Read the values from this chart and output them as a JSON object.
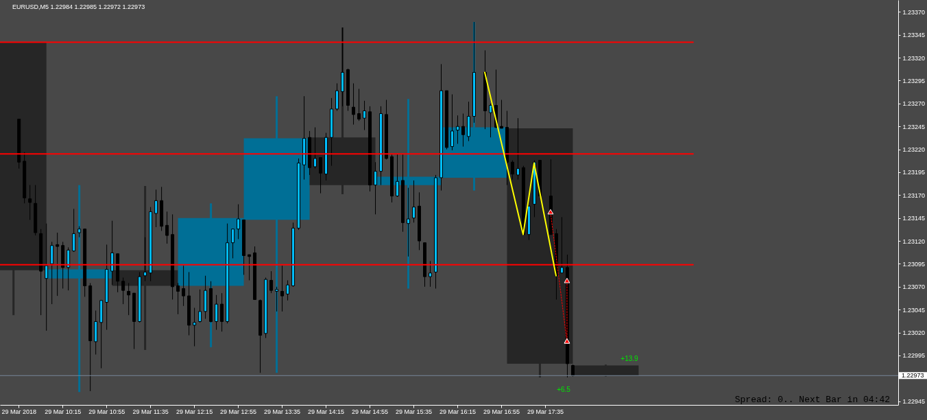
{
  "chart_data": {
    "type": "candlestick",
    "title": "EURUSD,M5 1.22984 1.22985 1.22972 1.22973",
    "xlim": [
      "2018-03-29T09:18",
      "2018-03-29T22:57"
    ],
    "xticks": [
      {
        "value": "2018-03-29T09:35",
        "label": "29 Mar 2018"
      },
      {
        "value": "2018-03-29T10:15",
        "label": "29 Mar 10:15"
      },
      {
        "value": "2018-03-29T10:55",
        "label": "29 Mar 10:55"
      },
      {
        "value": "2018-03-29T11:35",
        "label": "29 Mar 11:35"
      },
      {
        "value": "2018-03-29T12:15",
        "label": "29 Mar 12:15"
      },
      {
        "value": "2018-03-29T12:55",
        "label": "29 Mar 12:55"
      },
      {
        "value": "2018-03-29T13:35",
        "label": "29 Mar 13:35"
      },
      {
        "value": "2018-03-29T14:15",
        "label": "29 Mar 14:15"
      },
      {
        "value": "2018-03-29T14:55",
        "label": "29 Mar 14:55"
      },
      {
        "value": "2018-03-29T15:35",
        "label": "29 Mar 15:35"
      },
      {
        "value": "2018-03-29T16:15",
        "label": "29 Mar 16:15"
      },
      {
        "value": "2018-03-29T16:55",
        "label": "29 Mar 16:55"
      },
      {
        "value": "2018-03-29T17:35",
        "label": "29 Mar 17:35"
      }
    ],
    "ylim": [
      1.22941,
      1.23383
    ],
    "yticks": [
      {
        "value": 1.2337,
        "label": "1.23370"
      },
      {
        "value": 1.23345,
        "label": "1.23345"
      },
      {
        "value": 1.2332,
        "label": "1.23320"
      },
      {
        "value": 1.23295,
        "label": "1.23295"
      },
      {
        "value": 1.2327,
        "label": "1.23270"
      },
      {
        "value": 1.23245,
        "label": "1.23245"
      },
      {
        "value": 1.2322,
        "label": "1.23220"
      },
      {
        "value": 1.23195,
        "label": "1.23195"
      },
      {
        "value": 1.2317,
        "label": "1.23170"
      },
      {
        "value": 1.23145,
        "label": "1.23145"
      },
      {
        "value": 1.2312,
        "label": "1.23120"
      },
      {
        "value": 1.23095,
        "label": "1.23095"
      },
      {
        "value": 1.2307,
        "label": "1.23070"
      },
      {
        "value": 1.23045,
        "label": "1.23045"
      },
      {
        "value": 1.2302,
        "label": "1.23020"
      },
      {
        "value": 1.22995,
        "label": "1.22995"
      },
      {
        "value": 1.22945,
        "label": "1.22945"
      }
    ],
    "series": [
      {
        "x": [
          "2018-03-29T09:30",
          "2018-03-29T10:30",
          "2018-03-29T11:30",
          "2018-03-29T12:30",
          "2018-03-29T13:30",
          "2018-03-29T14:30",
          "2018-03-29T15:30",
          "2018-03-29T16:30",
          "2018-03-29T17:30",
          "2018-03-29T18:30"
        ],
        "ohlc": [
          [
            1.23337,
            1.23337,
            1.23039,
            1.23088
          ],
          [
            1.23079,
            1.23181,
            1.22955,
            1.23089
          ],
          [
            1.23088,
            1.2318,
            1.23001,
            1.23071
          ],
          [
            1.23071,
            1.23161,
            1.23004,
            1.23145
          ],
          [
            1.23143,
            1.23278,
            1.22976,
            1.23232
          ],
          [
            1.23233,
            1.23353,
            1.23171,
            1.23181
          ],
          [
            1.23181,
            1.23275,
            1.23068,
            1.2319
          ],
          [
            1.23189,
            1.23359,
            1.23175,
            1.23244
          ],
          [
            1.23243,
            1.23243,
            1.22971,
            1.22986
          ],
          [
            1.22984,
            1.22985,
            1.22972,
            1.22973
          ]
        ],
        "colors": [
          "#262626",
          "#006f96",
          "#262626",
          "#006f96",
          "#006f96",
          "#262626",
          "#006f96",
          "#006f96",
          "#262626",
          "#262626"
        ]
      },
      {
        "color": "#000000",
        "x": [
          "2018-03-29T09:35",
          "2018-03-29T09:40",
          "2018-03-29T09:45",
          "2018-03-29T09:50",
          "2018-03-29T09:55",
          "2018-03-29T10:00",
          "2018-03-29T10:05",
          "2018-03-29T10:10",
          "2018-03-29T10:15",
          "2018-03-29T10:20",
          "2018-03-29T10:25",
          "2018-03-29T10:30",
          "2018-03-29T10:35",
          "2018-03-29T10:40",
          "2018-03-29T10:45",
          "2018-03-29T10:50",
          "2018-03-29T10:55",
          "2018-03-29T11:00",
          "2018-03-29T11:05",
          "2018-03-29T11:10",
          "2018-03-29T11:15",
          "2018-03-29T11:20",
          "2018-03-29T11:25",
          "2018-03-29T11:30",
          "2018-03-29T11:35",
          "2018-03-29T11:40",
          "2018-03-29T11:45",
          "2018-03-29T11:50",
          "2018-03-29T11:55",
          "2018-03-29T12:00",
          "2018-03-29T12:05",
          "2018-03-29T12:10",
          "2018-03-29T12:15",
          "2018-03-29T12:20",
          "2018-03-29T12:25",
          "2018-03-29T12:30",
          "2018-03-29T12:35",
          "2018-03-29T12:40",
          "2018-03-29T12:45",
          "2018-03-29T12:50",
          "2018-03-29T12:55",
          "2018-03-29T13:00",
          "2018-03-29T13:05",
          "2018-03-29T13:10",
          "2018-03-29T13:15",
          "2018-03-29T13:20",
          "2018-03-29T13:25",
          "2018-03-29T13:30",
          "2018-03-29T13:35",
          "2018-03-29T13:40",
          "2018-03-29T13:45",
          "2018-03-29T13:50",
          "2018-03-29T13:55",
          "2018-03-29T14:00",
          "2018-03-29T14:05",
          "2018-03-29T14:10",
          "2018-03-29T14:15",
          "2018-03-29T14:20",
          "2018-03-29T14:25",
          "2018-03-29T14:30",
          "2018-03-29T14:35",
          "2018-03-29T14:40",
          "2018-03-29T14:45",
          "2018-03-29T14:50",
          "2018-03-29T14:55",
          "2018-03-29T15:00",
          "2018-03-29T15:05",
          "2018-03-29T15:10",
          "2018-03-29T15:15",
          "2018-03-29T15:20",
          "2018-03-29T15:25",
          "2018-03-29T15:30",
          "2018-03-29T15:35",
          "2018-03-29T15:40",
          "2018-03-29T15:45",
          "2018-03-29T15:50",
          "2018-03-29T15:55",
          "2018-03-29T16:00",
          "2018-03-29T16:05",
          "2018-03-29T16:10",
          "2018-03-29T16:15",
          "2018-03-29T16:20",
          "2018-03-29T16:25",
          "2018-03-29T16:30",
          "2018-03-29T16:40",
          "2018-03-29T16:45",
          "2018-03-29T16:50",
          "2018-03-29T16:55",
          "2018-03-29T17:00",
          "2018-03-29T17:05",
          "2018-03-29T17:10",
          "2018-03-29T17:15",
          "2018-03-29T17:20",
          "2018-03-29T17:25",
          "2018-03-29T17:30",
          "2018-03-29T17:40",
          "2018-03-29T17:45",
          "2018-03-29T17:50",
          "2018-03-29T17:55",
          "2018-03-29T18:00"
        ],
        "ohlc": [
          [
            1.23253,
            1.23253,
            1.23199,
            1.23206
          ],
          [
            1.23207,
            1.23217,
            1.23161,
            1.23167
          ],
          [
            1.23166,
            1.23181,
            1.23143,
            1.23162
          ],
          [
            1.23161,
            1.23181,
            1.23126,
            1.23129
          ],
          [
            1.23128,
            1.23133,
            1.23039,
            1.23087
          ],
          [
            1.23079,
            1.23139,
            1.23022,
            1.23093
          ],
          [
            1.23095,
            1.23119,
            1.23051,
            1.23115
          ],
          [
            1.23116,
            1.23129,
            1.2306,
            1.23114
          ],
          [
            1.23115,
            1.23119,
            1.23068,
            1.23091
          ],
          [
            1.23091,
            1.23113,
            1.23066,
            1.2311
          ],
          [
            1.23109,
            1.23155,
            1.23108,
            1.23128
          ],
          [
            1.23129,
            1.23136,
            1.23124,
            1.23133
          ],
          [
            1.23133,
            1.23133,
            1.23059,
            1.23071
          ],
          [
            1.23071,
            1.23074,
            1.22956,
            1.23011
          ],
          [
            1.2301,
            1.23044,
            1.22996,
            1.23032
          ],
          [
            1.23031,
            1.23055,
            1.22981,
            1.23055
          ],
          [
            1.23053,
            1.23116,
            1.23023,
            1.23089
          ],
          [
            1.23087,
            1.23142,
            1.23072,
            1.23107
          ],
          [
            1.23106,
            1.23106,
            1.23064,
            1.23076
          ],
          [
            1.23076,
            1.2308,
            1.23051,
            1.23066
          ],
          [
            1.23065,
            1.23074,
            1.23039,
            1.23061
          ],
          [
            1.23063,
            1.23063,
            1.23002,
            1.23032
          ],
          [
            1.23032,
            1.23086,
            1.23031,
            1.23081
          ],
          [
            1.23082,
            1.23124,
            1.23076,
            1.23086
          ],
          [
            1.23085,
            1.23157,
            1.23076,
            1.23152
          ],
          [
            1.2315,
            1.23176,
            1.23135,
            1.23164
          ],
          [
            1.23164,
            1.23179,
            1.23131,
            1.23136
          ],
          [
            1.23137,
            1.23152,
            1.23117,
            1.23126
          ],
          [
            1.23127,
            1.23149,
            1.23056,
            1.2307
          ],
          [
            1.23071,
            1.23074,
            1.2304,
            1.23065
          ],
          [
            1.23068,
            1.23093,
            1.23049,
            1.2306
          ],
          [
            1.2306,
            1.23086,
            1.23017,
            1.23028
          ],
          [
            1.23028,
            1.23047,
            1.23005,
            1.23031
          ],
          [
            1.23032,
            1.23067,
            1.23031,
            1.23043
          ],
          [
            1.23043,
            1.23082,
            1.23035,
            1.23066
          ],
          [
            1.23068,
            1.23076,
            1.23031,
            1.23032
          ],
          [
            1.23032,
            1.23061,
            1.23023,
            1.23051
          ],
          [
            1.23051,
            1.23063,
            1.23021,
            1.23032
          ],
          [
            1.23032,
            1.23139,
            1.2303,
            1.23118
          ],
          [
            1.23118,
            1.23133,
            1.23101,
            1.23133
          ],
          [
            1.23133,
            1.2316,
            1.23122,
            1.23144
          ],
          [
            1.23143,
            1.23143,
            1.23083,
            1.23104
          ],
          [
            1.23105,
            1.23105,
            1.23077,
            1.23103
          ],
          [
            1.23107,
            1.23114,
            1.23056,
            1.23056
          ],
          [
            1.23055,
            1.23056,
            1.22976,
            1.23017
          ],
          [
            1.23019,
            1.2308,
            1.23014,
            1.23078
          ],
          [
            1.23077,
            1.23087,
            1.23063,
            1.23066
          ],
          [
            1.23065,
            1.2307,
            1.23043,
            1.23067
          ],
          [
            1.23065,
            1.23093,
            1.23043,
            1.2306
          ],
          [
            1.23062,
            1.23077,
            1.23055,
            1.23072
          ],
          [
            1.23071,
            1.2314,
            1.2307,
            1.23134
          ],
          [
            1.23134,
            1.2321,
            1.23132,
            1.23205
          ],
          [
            1.23203,
            1.23278,
            1.23187,
            1.23232
          ],
          [
            1.23233,
            1.2324,
            1.23192,
            1.232
          ],
          [
            1.23201,
            1.23244,
            1.23199,
            1.2321
          ],
          [
            1.23211,
            1.23211,
            1.23172,
            1.23194
          ],
          [
            1.23193,
            1.23238,
            1.23186,
            1.23233
          ],
          [
            1.23233,
            1.23276,
            1.23202,
            1.23264
          ],
          [
            1.23264,
            1.23292,
            1.23262,
            1.23284
          ],
          [
            1.23283,
            1.23353,
            1.23267,
            1.23304
          ],
          [
            1.23307,
            1.23308,
            1.23262,
            1.23268
          ],
          [
            1.23266,
            1.23292,
            1.23247,
            1.23258
          ],
          [
            1.23259,
            1.23286,
            1.23251,
            1.23253
          ],
          [
            1.23254,
            1.23273,
            1.23241,
            1.23262
          ],
          [
            1.23261,
            1.23267,
            1.23174,
            1.23181
          ],
          [
            1.23181,
            1.23206,
            1.23149,
            1.23196
          ],
          [
            1.23196,
            1.23267,
            1.23181,
            1.23259
          ],
          [
            1.23258,
            1.23274,
            1.23209,
            1.2321
          ],
          [
            1.23212,
            1.23215,
            1.23162,
            1.23169
          ],
          [
            1.23169,
            1.23215,
            1.23168,
            1.23185
          ],
          [
            1.23186,
            1.23215,
            1.2313,
            1.2314
          ],
          [
            1.23139,
            1.23178,
            1.23103,
            1.23144
          ],
          [
            1.23145,
            1.23186,
            1.2314,
            1.23157
          ],
          [
            1.23158,
            1.23173,
            1.2311,
            1.2312
          ],
          [
            1.23118,
            1.23118,
            1.2307,
            1.23081
          ],
          [
            1.23081,
            1.23098,
            1.2307,
            1.23085
          ],
          [
            1.23086,
            1.23192,
            1.23068,
            1.23189
          ],
          [
            1.23189,
            1.23313,
            1.23175,
            1.23284
          ],
          [
            1.23284,
            1.23284,
            1.2322,
            1.23222
          ],
          [
            1.23223,
            1.2328,
            1.23219,
            1.2324
          ],
          [
            1.23241,
            1.23257,
            1.23226,
            1.23245
          ],
          [
            1.23245,
            1.23259,
            1.23223,
            1.23236
          ],
          [
            1.23234,
            1.23272,
            1.23229,
            1.23256
          ],
          [
            1.23256,
            1.23359,
            1.23249,
            1.23304
          ],
          [
            1.23304,
            1.23328,
            1.23242,
            1.23262
          ],
          [
            1.2326,
            1.2327,
            1.23233,
            1.23268
          ],
          [
            1.23268,
            1.23307,
            1.23243,
            1.23244
          ],
          [
            1.23245,
            1.23274,
            1.23243,
            1.23243
          ],
          [
            1.23244,
            1.23262,
            1.23181,
            1.23206
          ],
          [
            1.23206,
            1.23208,
            1.23187,
            1.23193
          ],
          [
            1.23192,
            1.23254,
            1.23187,
            1.23199
          ],
          [
            1.232,
            1.23202,
            1.23126,
            1.23127
          ],
          [
            1.23127,
            1.23158,
            1.23121,
            1.23158
          ],
          [
            1.2316,
            1.23208,
            1.23146,
            1.23206
          ],
          [
            1.23208,
            1.23208,
            1.23169,
            1.23169
          ],
          [
            1.23169,
            1.23209,
            1.23127,
            1.23127
          ],
          [
            1.23128,
            1.23133,
            1.23056,
            1.23082
          ],
          [
            1.23085,
            1.23146,
            1.23085,
            1.23091
          ],
          [
            1.23091,
            1.23105,
            1.22971,
            1.22986
          ],
          [
            1.22984,
            1.22985,
            1.22972,
            1.22973
          ]
        ],
        "colors": [
          "#000000",
          "#000000",
          "#000000",
          "#000000",
          "#000000",
          "#00bfff",
          "#00bfff",
          "#000000",
          "#000000",
          "#00bfff",
          "#00bfff",
          "#00bfff",
          "#000000",
          "#000000",
          "#00bfff",
          "#00bfff",
          "#00bfff",
          "#00bfff",
          "#000000",
          "#000000",
          "#000000",
          "#000000",
          "#00bfff",
          "#00bfff",
          "#00bfff",
          "#00bfff",
          "#000000",
          "#000000",
          "#000000",
          "#000000",
          "#000000",
          "#000000",
          "#00bfff",
          "#00bfff",
          "#00bfff",
          "#000000",
          "#00bfff",
          "#000000",
          "#00bfff",
          "#00bfff",
          "#00bfff",
          "#000000",
          "#000000",
          "#000000",
          "#000000",
          "#00bfff",
          "#000000",
          "#00bfff",
          "#000000",
          "#00bfff",
          "#00bfff",
          "#00bfff",
          "#00bfff",
          "#000000",
          "#00bfff",
          "#000000",
          "#00bfff",
          "#00bfff",
          "#00bfff",
          "#00bfff",
          "#000000",
          "#000000",
          "#000000",
          "#00bfff",
          "#000000",
          "#00bfff",
          "#00bfff",
          "#000000",
          "#000000",
          "#00bfff",
          "#000000",
          "#00bfff",
          "#00bfff",
          "#000000",
          "#000000",
          "#00bfff",
          "#00bfff",
          "#00bfff",
          "#000000",
          "#00bfff",
          "#00bfff",
          "#000000",
          "#00bfff",
          "#00bfff",
          "#000000",
          "#00bfff",
          "#000000",
          "#000000",
          "#000000",
          "#000000",
          "#00bfff",
          "#000000",
          "#00bfff",
          "#00bfff",
          "#000000",
          "#000000",
          "#000000",
          "#00bfff",
          "#000000",
          "#000000"
        ]
      },
      {
        "type": "line",
        "color": "#ff0000",
        "x": [
          "2018-03-29T09:18",
          "2018-03-29T19:50"
        ],
        "values": [
          1.23337,
          1.23337
        ]
      },
      {
        "type": "line",
        "color": "#ff0000",
        "x": [
          "2018-03-29T09:18",
          "2018-03-29T19:50"
        ],
        "values": [
          1.23215,
          1.23215
        ]
      },
      {
        "type": "line",
        "color": "#ff0000",
        "x": [
          "2018-03-29T09:18",
          "2018-03-29T19:50"
        ],
        "values": [
          1.23094,
          1.23094
        ]
      },
      {
        "type": "line",
        "color": "#ffff00",
        "x": [
          "2018-03-29T16:40",
          "2018-03-29T17:15",
          "2018-03-29T17:25",
          "2018-03-29T17:45"
        ],
        "values": [
          1.23304,
          1.23127,
          1.23205,
          1.23082
        ]
      },
      {
        "type": "line",
        "color": "#ff0000",
        "line_style": "dotted",
        "marker": "triangle",
        "x": [
          "2018-03-29T17:40",
          "2018-03-29T17:55"
        ],
        "values": [
          1.23151,
          1.2301
        ]
      },
      {
        "type": "line",
        "color": "#ff0000",
        "line_style": "dotted",
        "marker": "triangle",
        "x": [
          "2018-03-29T17:55",
          "2018-03-29T17:55"
        ],
        "values": [
          1.23076,
          1.2301
        ]
      }
    ],
    "ref_lines": [
      {
        "axis": "y",
        "value": 1.22973,
        "label": "1.22973",
        "color": "#778899"
      }
    ],
    "annotations": [
      "+13.9",
      "+6.5",
      "Spread: 0.. Next Bar in 04:42"
    ]
  }
}
